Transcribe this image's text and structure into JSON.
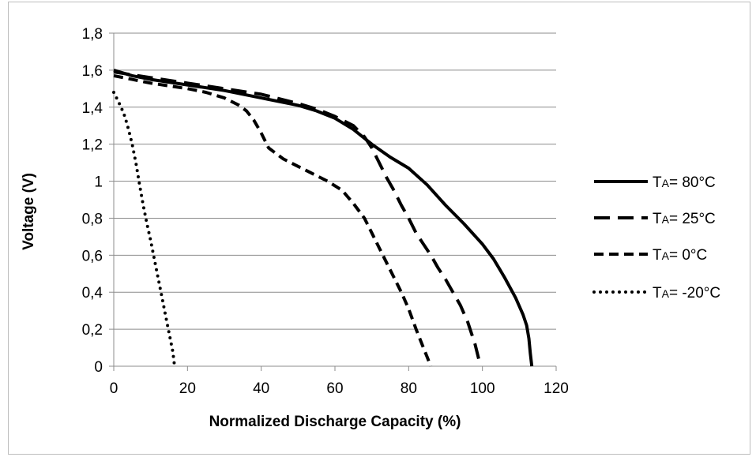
{
  "chart_data": {
    "type": "line",
    "title": "",
    "xlabel": "Normalized Discharge Capacity (%)",
    "ylabel": "Voltage (V)",
    "xlim": [
      0,
      120
    ],
    "ylim": [
      0,
      1.8
    ],
    "x_ticks": [
      0,
      20,
      40,
      60,
      80,
      100,
      120
    ],
    "x_tick_labels": [
      "0",
      "20",
      "40",
      "60",
      "80",
      "100",
      "120"
    ],
    "y_ticks": [
      0,
      0.2,
      0.4,
      0.6,
      0.8,
      1,
      1.2,
      1.4,
      1.6,
      1.8
    ],
    "y_tick_labels": [
      "0",
      "0,2",
      "0,4",
      "0,6",
      "0,8",
      "1",
      "1,2",
      "1,4",
      "1,6",
      "1,8"
    ],
    "grid": "horizontal",
    "legend_position": "right",
    "series": [
      {
        "name": "TA= 80°C",
        "legend_main": "T",
        "legend_sub": "A",
        "legend_rest": "= 80°C",
        "style": "solid",
        "color": "#000000",
        "x": [
          0,
          5,
          10,
          20,
          30,
          40,
          50,
          55,
          60,
          65,
          70,
          75,
          80,
          85,
          90,
          95,
          100,
          103,
          106,
          109,
          111,
          112,
          112.6,
          113,
          113.4
        ],
        "y": [
          1.6,
          1.57,
          1.55,
          1.52,
          1.49,
          1.45,
          1.41,
          1.38,
          1.34,
          1.28,
          1.2,
          1.13,
          1.07,
          0.98,
          0.87,
          0.77,
          0.66,
          0.58,
          0.48,
          0.37,
          0.28,
          0.22,
          0.15,
          0.07,
          0.0
        ]
      },
      {
        "name": "TA= 25°C",
        "legend_main": "T",
        "legend_sub": "A",
        "legend_rest": "= 25°C",
        "style": "long-dash",
        "color": "#000000",
        "x": [
          0,
          10,
          20,
          30,
          40,
          50,
          55,
          60,
          65,
          68,
          70,
          72,
          74,
          76,
          78,
          80,
          82,
          84,
          86,
          88,
          90,
          92,
          94,
          96,
          98,
          99.5
        ],
        "y": [
          1.59,
          1.56,
          1.53,
          1.5,
          1.47,
          1.42,
          1.39,
          1.35,
          1.3,
          1.24,
          1.18,
          1.1,
          1.02,
          0.95,
          0.87,
          0.8,
          0.72,
          0.66,
          0.6,
          0.53,
          0.47,
          0.4,
          0.33,
          0.24,
          0.12,
          0.0
        ]
      },
      {
        "name": "TA= 0°C",
        "legend_main": "T",
        "legend_sub": "A",
        "legend_rest": "= 0°C",
        "style": "dash",
        "color": "#000000",
        "x": [
          0,
          5,
          10,
          20,
          25,
          30,
          34,
          36,
          38,
          40,
          42,
          44,
          46,
          50,
          54,
          58,
          62,
          65,
          68,
          70,
          72,
          74,
          76,
          78,
          80,
          82,
          84,
          85,
          86
        ],
        "y": [
          1.57,
          1.55,
          1.53,
          1.5,
          1.48,
          1.45,
          1.41,
          1.38,
          1.33,
          1.26,
          1.18,
          1.15,
          1.12,
          1.08,
          1.04,
          1.0,
          0.95,
          0.88,
          0.8,
          0.72,
          0.64,
          0.56,
          0.48,
          0.4,
          0.31,
          0.2,
          0.1,
          0.05,
          0.0
        ]
      },
      {
        "name": "TA= -20°C",
        "legend_main": "T",
        "legend_sub": "A",
        "legend_rest": "= -20°C",
        "style": "dotted",
        "color": "#000000",
        "x": [
          0,
          1,
          2,
          3,
          4,
          5,
          6,
          7,
          8,
          9,
          10,
          11,
          12,
          13,
          14,
          15,
          16,
          16.5
        ],
        "y": [
          1.48,
          1.44,
          1.4,
          1.35,
          1.28,
          1.2,
          1.1,
          0.98,
          0.87,
          0.77,
          0.68,
          0.58,
          0.48,
          0.38,
          0.28,
          0.18,
          0.08,
          0.0
        ]
      }
    ]
  }
}
